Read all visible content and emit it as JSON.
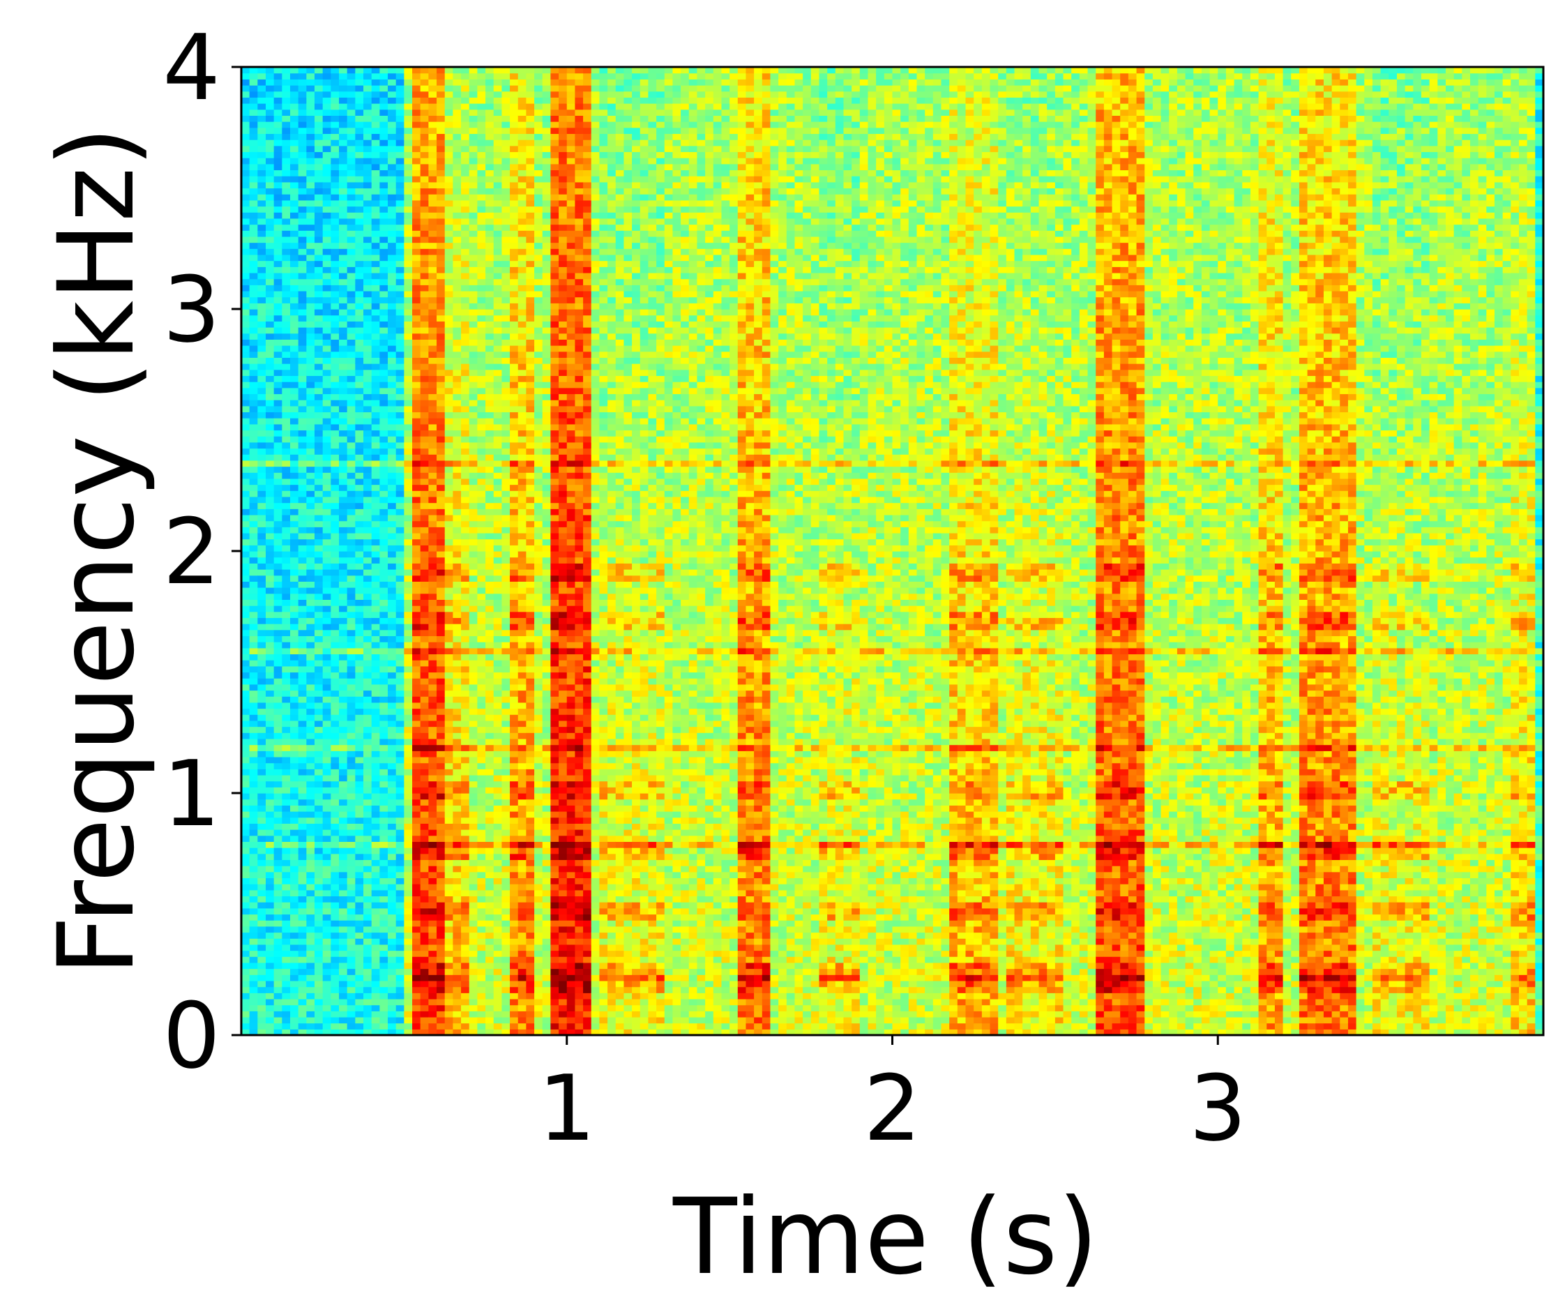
{
  "chart_data": {
    "type": "heatmap",
    "xlabel": "Time (s)",
    "ylabel": "Frequency (kHz)",
    "xlim": [
      0,
      4
    ],
    "ylim": [
      0,
      4
    ],
    "x_ticks": [
      1,
      2,
      3
    ],
    "y_ticks": [
      0,
      1,
      2,
      3,
      4
    ],
    "colormap": "jet",
    "colors": {
      "low": "#0000ff",
      "mid_low": "#40e0c0",
      "mid": "#b0f050",
      "mid_high": "#ffff00",
      "high": "#ff8000",
      "max": "#b00000"
    },
    "time_resolution_s": 0.025,
    "freq_resolution_khz": 0.025,
    "energy_bursts": [
      {
        "t_start": 0.53,
        "t_end": 0.62,
        "level": 0.82
      },
      {
        "t_start": 0.62,
        "t_end": 0.7,
        "level": 0.68
      },
      {
        "t_start": 0.82,
        "t_end": 0.9,
        "level": 0.74
      },
      {
        "t_start": 0.95,
        "t_end": 1.08,
        "level": 0.86
      },
      {
        "t_start": 1.1,
        "t_end": 1.3,
        "level": 0.62
      },
      {
        "t_start": 1.53,
        "t_end": 1.63,
        "level": 0.76
      },
      {
        "t_start": 1.78,
        "t_end": 1.9,
        "level": 0.62
      },
      {
        "t_start": 2.17,
        "t_end": 2.32,
        "level": 0.7
      },
      {
        "t_start": 2.34,
        "t_end": 2.52,
        "level": 0.64
      },
      {
        "t_start": 2.63,
        "t_end": 2.78,
        "level": 0.8
      },
      {
        "t_start": 3.12,
        "t_end": 3.2,
        "level": 0.72
      },
      {
        "t_start": 3.25,
        "t_end": 3.42,
        "level": 0.76
      },
      {
        "t_start": 3.48,
        "t_end": 3.65,
        "level": 0.62
      },
      {
        "t_start": 3.9,
        "t_end": 3.98,
        "level": 0.66
      }
    ],
    "harmonic_bands_khz": [
      0.2,
      0.25,
      0.5,
      0.75,
      1.0,
      1.7,
      1.9
    ],
    "horizontal_lines_khz": [
      0.78,
      1.17,
      1.57,
      2.35
    ]
  }
}
